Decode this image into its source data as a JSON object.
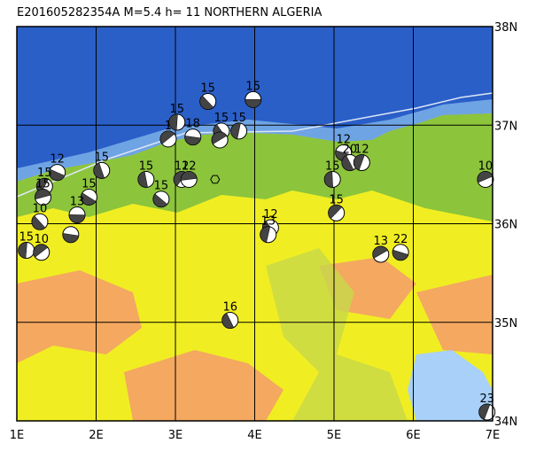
{
  "chart_data": {
    "type": "map",
    "title": "E201605282354A  M=5.4  h= 11  NORTHERN ALGERIA",
    "xlim": [
      1,
      7
    ],
    "ylim": [
      34,
      38
    ],
    "xticks": [
      {
        "value": 1,
        "label": "1E"
      },
      {
        "value": 2,
        "label": "2E"
      },
      {
        "value": 3,
        "label": "3E"
      },
      {
        "value": 4,
        "label": "4E"
      },
      {
        "value": 5,
        "label": "5E"
      },
      {
        "value": 6,
        "label": "6E"
      },
      {
        "value": 7,
        "label": "7E"
      }
    ],
    "yticks": [
      {
        "value": 34,
        "label": "34N"
      },
      {
        "value": 35,
        "label": "35N"
      },
      {
        "value": 36,
        "label": "36N"
      },
      {
        "value": 37,
        "label": "37N"
      },
      {
        "value": 38,
        "label": "38N"
      }
    ],
    "grid": true,
    "epicenter": {
      "lon": 3.5,
      "lat": 36.45
    },
    "events": {
      "lon": [
        3.98,
        3.41,
        3.02,
        2.91,
        3.22,
        3.58,
        3.8,
        3.56,
        5.12,
        5.2,
        5.35,
        6.91,
        1.51,
        2.07,
        1.35,
        1.33,
        1.91,
        2.63,
        3.08,
        3.17,
        2.82,
        4.98,
        5.03,
        1.76,
        1.29,
        1.12,
        1.31,
        1.68,
        4.2,
        4.17,
        5.59,
        5.84,
        3.69,
        6.93
      ],
      "lat": [
        37.26,
        37.24,
        37.03,
        36.86,
        36.88,
        36.94,
        36.94,
        36.85,
        36.72,
        36.62,
        36.62,
        36.45,
        36.52,
        36.54,
        36.38,
        36.27,
        36.27,
        36.45,
        36.45,
        36.45,
        36.25,
        36.45,
        36.11,
        36.09,
        36.02,
        35.73,
        35.71,
        35.89,
        35.96,
        35.89,
        35.69,
        35.71,
        35.02,
        34.09
      ],
      "labels": [
        "15",
        "15",
        "15",
        "1",
        "18",
        "15",
        "15",
        null,
        "12",
        "20",
        "12",
        "10",
        "12",
        "15",
        "15",
        "15",
        "15",
        "15",
        "12",
        "12",
        "15",
        "15",
        "15",
        "13",
        "10",
        "15",
        "10",
        null,
        "12",
        "13",
        "13",
        "22",
        "16",
        "23"
      ]
    }
  }
}
